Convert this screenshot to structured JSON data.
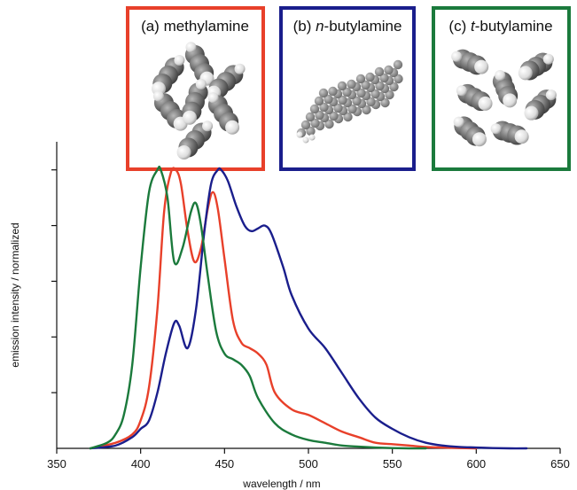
{
  "chart_data": {
    "type": "line",
    "title": "",
    "xlabel": "wavelength / nm",
    "ylabel": "emission intensity / normalized",
    "xlim": [
      350,
      650
    ],
    "ylim": [
      0,
      1.05
    ],
    "x_ticks": [
      350,
      400,
      450,
      500,
      550,
      600,
      650
    ],
    "y_ticks": [
      0.2,
      0.4,
      0.6,
      0.8,
      1.0
    ],
    "y_tick_labels_shown": false,
    "grid": false,
    "legend": "none",
    "series": [
      {
        "color": "#e8402a",
        "x": [
          370,
          385,
          395,
          400,
          405,
          410,
          414,
          418,
          421,
          424,
          428,
          432,
          436,
          440,
          443,
          446,
          450,
          455,
          460,
          465,
          470,
          475,
          480,
          490,
          500,
          510,
          520,
          530,
          540,
          550,
          560,
          570,
          580,
          590,
          600
        ],
        "y": [
          0.0,
          0.02,
          0.05,
          0.1,
          0.22,
          0.5,
          0.85,
          0.99,
          1.0,
          0.95,
          0.78,
          0.67,
          0.72,
          0.86,
          0.92,
          0.86,
          0.68,
          0.46,
          0.38,
          0.36,
          0.34,
          0.3,
          0.2,
          0.14,
          0.12,
          0.09,
          0.06,
          0.04,
          0.02,
          0.015,
          0.01,
          0.005,
          0.003,
          0.001,
          0.0
        ]
      },
      {
        "color": "#1a1e8c",
        "x": [
          370,
          385,
          395,
          400,
          405,
          410,
          415,
          420,
          423,
          428,
          433,
          438,
          442,
          446,
          448,
          452,
          457,
          462,
          466,
          470,
          474,
          478,
          485,
          490,
          500,
          510,
          520,
          530,
          540,
          550,
          560,
          570,
          580,
          590,
          600,
          610,
          620,
          630
        ],
        "y": [
          0.0,
          0.01,
          0.04,
          0.07,
          0.1,
          0.2,
          0.34,
          0.45,
          0.44,
          0.36,
          0.5,
          0.78,
          0.95,
          1.0,
          1.0,
          0.96,
          0.87,
          0.8,
          0.78,
          0.79,
          0.8,
          0.77,
          0.65,
          0.55,
          0.43,
          0.36,
          0.27,
          0.18,
          0.11,
          0.07,
          0.04,
          0.02,
          0.01,
          0.005,
          0.003,
          0.001,
          0.0,
          0.0
        ]
      },
      {
        "color": "#1b7a3c",
        "x": [
          370,
          380,
          385,
          390,
          395,
          400,
          405,
          410,
          412,
          416,
          420,
          425,
          430,
          433,
          436,
          440,
          445,
          450,
          455,
          460,
          465,
          470,
          480,
          490,
          500,
          510,
          520,
          530,
          540,
          550,
          560,
          570
        ],
        "y": [
          0.0,
          0.02,
          0.05,
          0.12,
          0.3,
          0.65,
          0.92,
          1.0,
          1.0,
          0.9,
          0.67,
          0.72,
          0.85,
          0.88,
          0.8,
          0.62,
          0.42,
          0.34,
          0.32,
          0.3,
          0.26,
          0.18,
          0.09,
          0.05,
          0.03,
          0.02,
          0.01,
          0.006,
          0.003,
          0.001,
          0.0,
          0.0
        ]
      }
    ]
  },
  "insets": [
    {
      "label": "(a) methylamine",
      "color": "#e8402a"
    },
    {
      "label_prefix": "(b) ",
      "label_italic": "n",
      "label_suffix": "-butylamine",
      "color": "#1a1e8c"
    },
    {
      "label_prefix": "(c) ",
      "label_italic": "t",
      "label_suffix": "-butylamine",
      "color": "#1b7a3c"
    }
  ]
}
